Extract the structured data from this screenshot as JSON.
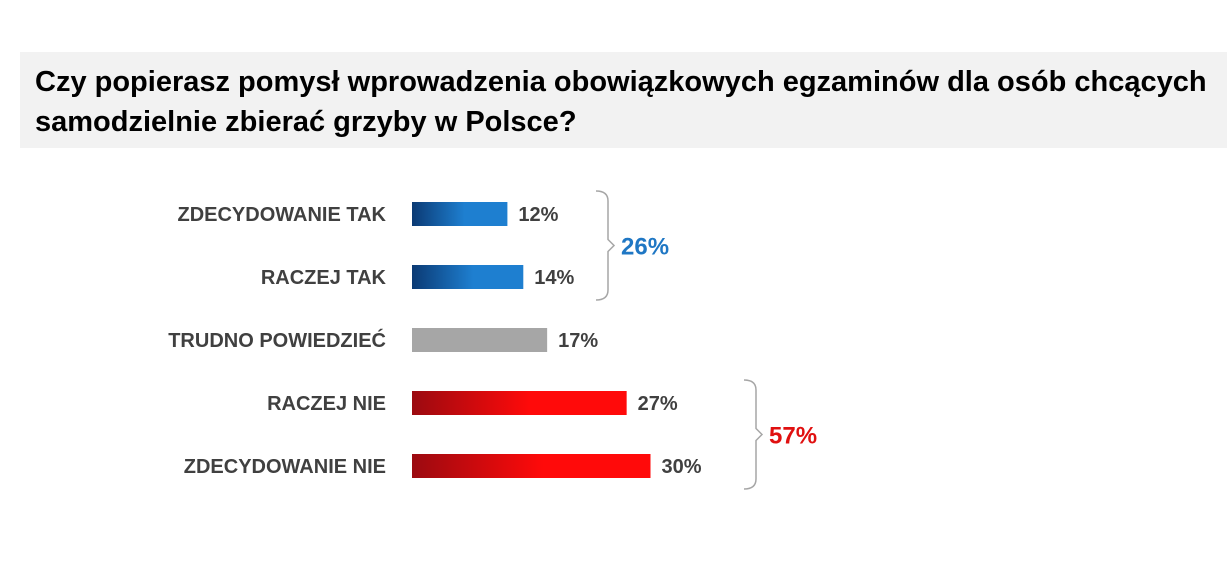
{
  "title": "Czy popierasz pomysł wprowadzenia obowiązkowych egzaminów dla osób chcących samodzielnie zbierać grzyby w Polsce?",
  "chart_data": {
    "type": "bar",
    "orientation": "horizontal",
    "categories": [
      "ZDECYDOWANIE TAK",
      "RACZEJ TAK",
      "TRUDNO POWIEDZIEĆ",
      "RACZEJ NIE",
      "ZDECYDOWANIE NIE"
    ],
    "values": [
      12,
      14,
      17,
      27,
      30
    ],
    "value_labels": [
      "12%",
      "14%",
      "17%",
      "27%",
      "30%"
    ],
    "unit": "%",
    "bar_colors": [
      [
        "#0b3a74",
        "#1e7fd0"
      ],
      [
        "#0b3a74",
        "#1e7fd0"
      ],
      [
        "#a6a6a6",
        "#a6a6a6"
      ],
      [
        "#9b0a10",
        "#ff0a0a"
      ],
      [
        "#9b0a10",
        "#ff0a0a"
      ]
    ],
    "groups": [
      {
        "label": "26%",
        "from": 0,
        "to": 1,
        "color": "#1f77c4"
      },
      {
        "label": "57%",
        "from": 3,
        "to": 4,
        "color": "#e01010"
      }
    ],
    "xlim": [
      0,
      100
    ],
    "grid": false,
    "legend": "none"
  }
}
